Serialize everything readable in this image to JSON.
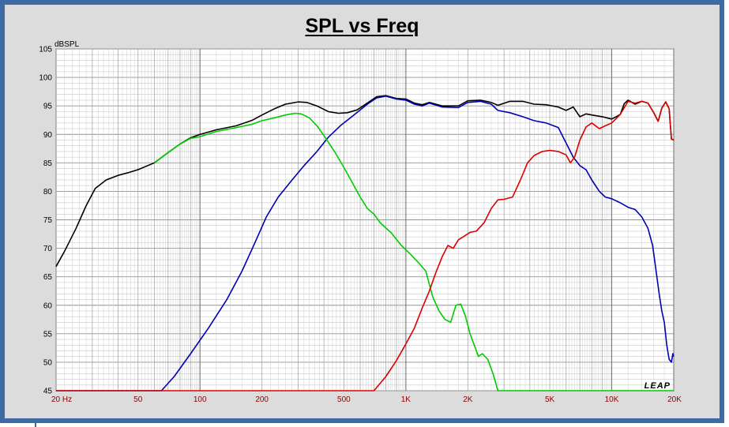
{
  "chart_data": {
    "type": "line",
    "title": "SPL vs Freq",
    "ylabel": "dBSPL",
    "ylim": [
      45,
      105
    ],
    "xlim": [
      20,
      20000
    ],
    "xscale": "log",
    "grid": true,
    "y_ticks": [
      "105",
      "100",
      "95",
      "90",
      "85",
      "80",
      "75",
      "70",
      "65",
      "60",
      "55",
      "50",
      "45"
    ],
    "x_ticks": [
      {
        "value": 20,
        "label": "20  Hz"
      },
      {
        "value": 50,
        "label": "50"
      },
      {
        "value": 100,
        "label": "100"
      },
      {
        "value": 200,
        "label": "200"
      },
      {
        "value": 500,
        "label": "500"
      },
      {
        "value": 1000,
        "label": "1K"
      },
      {
        "value": 2000,
        "label": "2K"
      },
      {
        "value": 5000,
        "label": "5K"
      },
      {
        "value": 10000,
        "label": "10K"
      },
      {
        "value": 20000,
        "label": "20K"
      }
    ],
    "watermark": "LEAP",
    "series": [
      {
        "color": "#000000",
        "points": [
          [
            20,
            66.8
          ],
          [
            22,
            69.5
          ],
          [
            25,
            73.5
          ],
          [
            28,
            77.5
          ],
          [
            31,
            80.5
          ],
          [
            35,
            82
          ],
          [
            40,
            82.8
          ],
          [
            45,
            83.3
          ],
          [
            50,
            83.8
          ],
          [
            60,
            85
          ],
          [
            70,
            86.8
          ],
          [
            80,
            88.3
          ],
          [
            90,
            89.4
          ],
          [
            100,
            90
          ],
          [
            120,
            90.8
          ],
          [
            150,
            91.5
          ],
          [
            180,
            92.5
          ],
          [
            200,
            93.4
          ],
          [
            230,
            94.5
          ],
          [
            260,
            95.3
          ],
          [
            300,
            95.7
          ],
          [
            330,
            95.6
          ],
          [
            370,
            95
          ],
          [
            420,
            94
          ],
          [
            470,
            93.7
          ],
          [
            520,
            93.8
          ],
          [
            580,
            94.3
          ],
          [
            650,
            95.5
          ],
          [
            720,
            96.6
          ],
          [
            800,
            96.8
          ],
          [
            900,
            96.3
          ],
          [
            1000,
            96.2
          ],
          [
            1100,
            95.5
          ],
          [
            1200,
            95.2
          ],
          [
            1300,
            95.6
          ],
          [
            1500,
            95
          ],
          [
            1800,
            95
          ],
          [
            2000,
            95.9
          ],
          [
            2300,
            96
          ],
          [
            2600,
            95.6
          ],
          [
            2800,
            95.1
          ],
          [
            3200,
            95.8
          ],
          [
            3700,
            95.8
          ],
          [
            4200,
            95.3
          ],
          [
            4800,
            95.2
          ],
          [
            5500,
            94.8
          ],
          [
            6000,
            94.2
          ],
          [
            6500,
            94.8
          ],
          [
            7000,
            93.1
          ],
          [
            7500,
            93.6
          ],
          [
            8000,
            93.4
          ],
          [
            9000,
            93.1
          ],
          [
            10000,
            92.7
          ],
          [
            10500,
            93.1
          ],
          [
            11000,
            93.5
          ],
          [
            11500,
            95.4
          ],
          [
            12000,
            96
          ],
          [
            13000,
            95.3
          ],
          [
            14000,
            95.8
          ],
          [
            15000,
            95.5
          ],
          [
            16000,
            93.8
          ],
          [
            16800,
            92.3
          ],
          [
            17500,
            94.6
          ],
          [
            18300,
            95.7
          ],
          [
            19000,
            94.5
          ],
          [
            19500,
            89.2
          ],
          [
            20000,
            89
          ]
        ]
      },
      {
        "color": "#0000b4",
        "points": [
          [
            20,
            45
          ],
          [
            65,
            45
          ],
          [
            75,
            47.5
          ],
          [
            90,
            51.5
          ],
          [
            110,
            56
          ],
          [
            135,
            61
          ],
          [
            160,
            66
          ],
          [
            185,
            71
          ],
          [
            210,
            75.5
          ],
          [
            240,
            79
          ],
          [
            280,
            82
          ],
          [
            320,
            84.5
          ],
          [
            370,
            87
          ],
          [
            420,
            89.5
          ],
          [
            480,
            91.5
          ],
          [
            550,
            93.2
          ],
          [
            650,
            95.3
          ],
          [
            720,
            96.4
          ],
          [
            800,
            96.7
          ],
          [
            900,
            96.2
          ],
          [
            1000,
            96
          ],
          [
            1100,
            95.3
          ],
          [
            1200,
            95
          ],
          [
            1300,
            95.5
          ],
          [
            1500,
            94.8
          ],
          [
            1800,
            94.7
          ],
          [
            2000,
            95.6
          ],
          [
            2300,
            95.8
          ],
          [
            2600,
            95.3
          ],
          [
            2800,
            94.2
          ],
          [
            3200,
            93.8
          ],
          [
            3700,
            93.1
          ],
          [
            4200,
            92.4
          ],
          [
            4800,
            92
          ],
          [
            5500,
            91.2
          ],
          [
            6000,
            88.5
          ],
          [
            6500,
            86
          ],
          [
            7000,
            84.5
          ],
          [
            7500,
            83.8
          ],
          [
            8000,
            82
          ],
          [
            8700,
            80
          ],
          [
            9300,
            79
          ],
          [
            10000,
            78.7
          ],
          [
            11000,
            78
          ],
          [
            12000,
            77.2
          ],
          [
            13000,
            76.8
          ],
          [
            14000,
            75.5
          ],
          [
            15000,
            73.5
          ],
          [
            15800,
            70.5
          ],
          [
            16500,
            65.5
          ],
          [
            17000,
            62
          ],
          [
            17500,
            59
          ],
          [
            18000,
            57
          ],
          [
            18500,
            53
          ],
          [
            19000,
            50.5
          ],
          [
            19500,
            50
          ],
          [
            19800,
            51.5
          ],
          [
            20000,
            51
          ]
        ]
      },
      {
        "color": "#00cc00",
        "points": [
          [
            60,
            85
          ],
          [
            70,
            86.8
          ],
          [
            80,
            88.3
          ],
          [
            90,
            89.3
          ],
          [
            100,
            89.6
          ],
          [
            120,
            90.5
          ],
          [
            150,
            91.2
          ],
          [
            180,
            91.8
          ],
          [
            200,
            92.4
          ],
          [
            230,
            92.9
          ],
          [
            260,
            93.4
          ],
          [
            290,
            93.7
          ],
          [
            310,
            93.6
          ],
          [
            340,
            92.9
          ],
          [
            370,
            91.5
          ],
          [
            400,
            89.8
          ],
          [
            450,
            87
          ],
          [
            500,
            84.2
          ],
          [
            550,
            81.5
          ],
          [
            600,
            79
          ],
          [
            650,
            77
          ],
          [
            700,
            76
          ],
          [
            750,
            74.5
          ],
          [
            850,
            72.7
          ],
          [
            950,
            70.5
          ],
          [
            1050,
            69
          ],
          [
            1150,
            67.5
          ],
          [
            1250,
            66
          ],
          [
            1350,
            61.5
          ],
          [
            1450,
            59
          ],
          [
            1550,
            57.5
          ],
          [
            1650,
            57
          ],
          [
            1750,
            60
          ],
          [
            1850,
            60.2
          ],
          [
            1950,
            58
          ],
          [
            2050,
            55
          ],
          [
            2150,
            53
          ],
          [
            2250,
            51
          ],
          [
            2350,
            51.5
          ],
          [
            2500,
            50.5
          ],
          [
            2650,
            48
          ],
          [
            2800,
            45
          ],
          [
            20000,
            45
          ]
        ]
      },
      {
        "color": "#dd0000",
        "points": [
          [
            20,
            45
          ],
          [
            700,
            45
          ],
          [
            800,
            47.5
          ],
          [
            900,
            50.3
          ],
          [
            1000,
            53.2
          ],
          [
            1100,
            56
          ],
          [
            1200,
            59.5
          ],
          [
            1300,
            62.5
          ],
          [
            1400,
            65.8
          ],
          [
            1500,
            68.5
          ],
          [
            1600,
            70.5
          ],
          [
            1700,
            70
          ],
          [
            1800,
            71.5
          ],
          [
            1900,
            72
          ],
          [
            2050,
            72.8
          ],
          [
            2200,
            73
          ],
          [
            2400,
            74.5
          ],
          [
            2600,
            77
          ],
          [
            2800,
            78.5
          ],
          [
            3000,
            78.6
          ],
          [
            3300,
            79
          ],
          [
            3600,
            82
          ],
          [
            3900,
            85
          ],
          [
            4200,
            86.3
          ],
          [
            4600,
            87
          ],
          [
            5000,
            87.2
          ],
          [
            5500,
            87
          ],
          [
            6000,
            86.4
          ],
          [
            6300,
            85
          ],
          [
            6600,
            86
          ],
          [
            7000,
            89
          ],
          [
            7500,
            91.3
          ],
          [
            8000,
            92
          ],
          [
            8700,
            91
          ],
          [
            9300,
            91.5
          ],
          [
            10000,
            92
          ],
          [
            11000,
            93.5
          ],
          [
            12000,
            95.8
          ],
          [
            13000,
            95.5
          ],
          [
            14000,
            95.8
          ],
          [
            15000,
            95.5
          ],
          [
            16000,
            93.8
          ],
          [
            16800,
            92.3
          ],
          [
            17500,
            94.6
          ],
          [
            18300,
            95.7
          ],
          [
            19000,
            94.5
          ],
          [
            19500,
            89.2
          ],
          [
            20000,
            89
          ]
        ]
      }
    ]
  }
}
